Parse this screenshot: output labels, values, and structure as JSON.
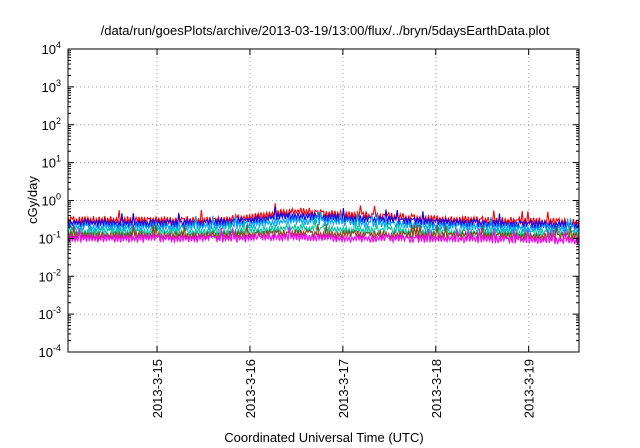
{
  "chart_data": {
    "type": "line",
    "title": "/data/run/goesPlots/archive/2013-03-19/13:00/flux/../bryn/5daysEarthData.plot",
    "xlabel": "Coordinated Universal Time (UTC)",
    "ylabel": "cGy/day",
    "yscale": "log",
    "ylim": [
      0.0001,
      10000
    ],
    "xlim": [
      "2013-03-14T01:00",
      "2013-03-19T13:00"
    ],
    "grid": true,
    "x_ticks": [
      {
        "value": "2013-03-15",
        "label": "2013-3-15"
      },
      {
        "value": "2013-03-16",
        "label": "2013-3-16"
      },
      {
        "value": "2013-03-17",
        "label": "2013-3-17"
      },
      {
        "value": "2013-03-18",
        "label": "2013-3-18"
      },
      {
        "value": "2013-03-19",
        "label": "2013-3-19"
      }
    ],
    "y_ticks": [
      {
        "value": 0.0001,
        "base": "10",
        "exp": "-4"
      },
      {
        "value": 0.001,
        "base": "10",
        "exp": "-3"
      },
      {
        "value": 0.01,
        "base": "10",
        "exp": "-2"
      },
      {
        "value": 0.1,
        "base": "10",
        "exp": "-1"
      },
      {
        "value": 1,
        "base": "10",
        "exp": "0"
      },
      {
        "value": 10,
        "base": "10",
        "exp": "1"
      },
      {
        "value": 100,
        "base": "10",
        "exp": "2"
      },
      {
        "value": 1000,
        "base": "10",
        "exp": "3"
      },
      {
        "value": 10000,
        "base": "10",
        "exp": "4"
      }
    ],
    "series": [
      {
        "color": "#ff0000",
        "values": [
          {
            "x": "2013-03-14T01:00",
            "y": 0.3
          },
          {
            "x": "2013-03-14T12:00",
            "y": 0.3
          },
          {
            "x": "2013-03-15T00:00",
            "y": 0.3
          },
          {
            "x": "2013-03-15T12:00",
            "y": 0.3
          },
          {
            "x": "2013-03-16T00:00",
            "y": 0.35
          },
          {
            "x": "2013-03-16T06:00",
            "y": 0.45
          },
          {
            "x": "2013-03-16T12:00",
            "y": 0.52
          },
          {
            "x": "2013-03-16T18:00",
            "y": 0.47
          },
          {
            "x": "2013-03-17T00:00",
            "y": 0.42
          },
          {
            "x": "2013-03-17T12:00",
            "y": 0.38
          },
          {
            "x": "2013-03-18T00:00",
            "y": 0.32
          },
          {
            "x": "2013-03-18T12:00",
            "y": 0.3
          },
          {
            "x": "2013-03-19T00:00",
            "y": 0.28
          },
          {
            "x": "2013-03-19T13:00",
            "y": 0.26
          }
        ]
      },
      {
        "color": "#0000ff",
        "values": [
          {
            "x": "2013-03-14T01:00",
            "y": 0.26
          },
          {
            "x": "2013-03-14T12:00",
            "y": 0.25
          },
          {
            "x": "2013-03-15T00:00",
            "y": 0.25
          },
          {
            "x": "2013-03-15T12:00",
            "y": 0.26
          },
          {
            "x": "2013-03-16T00:00",
            "y": 0.3
          },
          {
            "x": "2013-03-16T06:00",
            "y": 0.36
          },
          {
            "x": "2013-03-16T12:00",
            "y": 0.4
          },
          {
            "x": "2013-03-16T18:00",
            "y": 0.37
          },
          {
            "x": "2013-03-17T00:00",
            "y": 0.34
          },
          {
            "x": "2013-03-17T12:00",
            "y": 0.31
          },
          {
            "x": "2013-03-18T00:00",
            "y": 0.27
          },
          {
            "x": "2013-03-18T12:00",
            "y": 0.25
          },
          {
            "x": "2013-03-19T00:00",
            "y": 0.24
          },
          {
            "x": "2013-03-19T13:00",
            "y": 0.22
          }
        ]
      },
      {
        "color": "#00a0ff",
        "values": [
          {
            "x": "2013-03-14T01:00",
            "y": 0.2
          },
          {
            "x": "2013-03-14T12:00",
            "y": 0.2
          },
          {
            "x": "2013-03-15T00:00",
            "y": 0.2
          },
          {
            "x": "2013-03-15T12:00",
            "y": 0.21
          },
          {
            "x": "2013-03-16T00:00",
            "y": 0.23
          },
          {
            "x": "2013-03-16T06:00",
            "y": 0.27
          },
          {
            "x": "2013-03-16T12:00",
            "y": 0.3
          },
          {
            "x": "2013-03-16T18:00",
            "y": 0.28
          },
          {
            "x": "2013-03-17T00:00",
            "y": 0.26
          },
          {
            "x": "2013-03-17T12:00",
            "y": 0.24
          },
          {
            "x": "2013-03-18T00:00",
            "y": 0.21
          },
          {
            "x": "2013-03-18T12:00",
            "y": 0.2
          },
          {
            "x": "2013-03-19T00:00",
            "y": 0.19
          },
          {
            "x": "2013-03-19T13:00",
            "y": 0.18
          }
        ]
      },
      {
        "color": "#00c8a0",
        "values": [
          {
            "x": "2013-03-14T01:00",
            "y": 0.15
          },
          {
            "x": "2013-03-14T12:00",
            "y": 0.15
          },
          {
            "x": "2013-03-15T00:00",
            "y": 0.15
          },
          {
            "x": "2013-03-15T12:00",
            "y": 0.15
          },
          {
            "x": "2013-03-16T00:00",
            "y": 0.16
          },
          {
            "x": "2013-03-16T06:00",
            "y": 0.18
          },
          {
            "x": "2013-03-16T12:00",
            "y": 0.19
          },
          {
            "x": "2013-03-16T18:00",
            "y": 0.18
          },
          {
            "x": "2013-03-17T00:00",
            "y": 0.17
          },
          {
            "x": "2013-03-17T12:00",
            "y": 0.16
          },
          {
            "x": "2013-03-18T00:00",
            "y": 0.15
          },
          {
            "x": "2013-03-18T12:00",
            "y": 0.15
          },
          {
            "x": "2013-03-19T00:00",
            "y": 0.14
          },
          {
            "x": "2013-03-19T13:00",
            "y": 0.14
          }
        ]
      },
      {
        "color": "#8b4513",
        "values": [
          {
            "x": "2013-03-14T01:00",
            "y": 0.12
          },
          {
            "x": "2013-03-14T12:00",
            "y": 0.12
          },
          {
            "x": "2013-03-15T00:00",
            "y": 0.12
          },
          {
            "x": "2013-03-15T12:00",
            "y": 0.12
          },
          {
            "x": "2013-03-16T00:00",
            "y": 0.125
          },
          {
            "x": "2013-03-16T06:00",
            "y": 0.13
          },
          {
            "x": "2013-03-16T12:00",
            "y": 0.135
          },
          {
            "x": "2013-03-16T18:00",
            "y": 0.13
          },
          {
            "x": "2013-03-17T00:00",
            "y": 0.128
          },
          {
            "x": "2013-03-17T12:00",
            "y": 0.125
          },
          {
            "x": "2013-03-18T00:00",
            "y": 0.12
          },
          {
            "x": "2013-03-18T12:00",
            "y": 0.12
          },
          {
            "x": "2013-03-19T00:00",
            "y": 0.115
          },
          {
            "x": "2013-03-19T13:00",
            "y": 0.115
          }
        ]
      },
      {
        "color": "#ff00ff",
        "values": [
          {
            "x": "2013-03-14T01:00",
            "y": 0.1
          },
          {
            "x": "2013-03-14T12:00",
            "y": 0.1
          },
          {
            "x": "2013-03-15T00:00",
            "y": 0.1
          },
          {
            "x": "2013-03-15T12:00",
            "y": 0.1
          },
          {
            "x": "2013-03-16T00:00",
            "y": 0.1
          },
          {
            "x": "2013-03-16T06:00",
            "y": 0.105
          },
          {
            "x": "2013-03-16T12:00",
            "y": 0.11
          },
          {
            "x": "2013-03-16T18:00",
            "y": 0.105
          },
          {
            "x": "2013-03-17T00:00",
            "y": 0.1
          },
          {
            "x": "2013-03-17T12:00",
            "y": 0.1
          },
          {
            "x": "2013-03-18T00:00",
            "y": 0.095
          },
          {
            "x": "2013-03-18T12:00",
            "y": 0.095
          },
          {
            "x": "2013-03-19T00:00",
            "y": 0.09
          },
          {
            "x": "2013-03-19T13:00",
            "y": 0.09
          }
        ]
      }
    ]
  }
}
